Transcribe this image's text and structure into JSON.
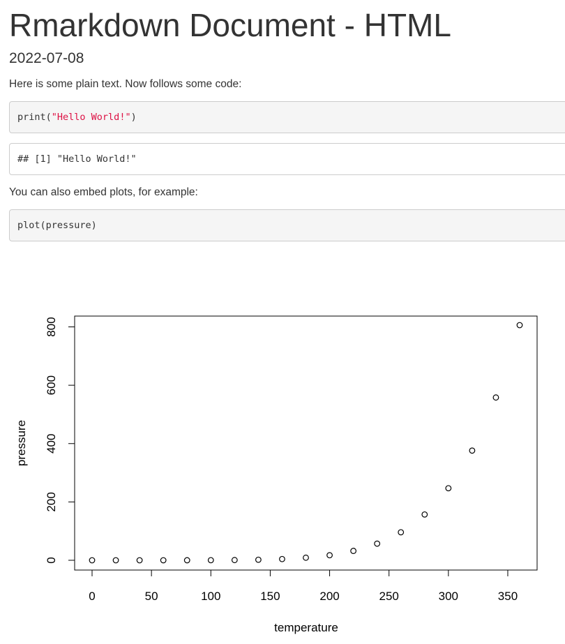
{
  "document": {
    "title": "Rmarkdown Document - HTML",
    "date": "2022-07-08",
    "intro_text": "Here is some plain text. Now follows some code:",
    "code1": {
      "fn": "print(",
      "string": "\"Hello World!\"",
      "close": ")"
    },
    "output1": "## [1] \"Hello World!\"",
    "plots_text": "You can also embed plots, for example:",
    "code2": "plot(pressure)"
  },
  "chart_data": {
    "type": "scatter",
    "title": "",
    "xlabel": "temperature",
    "ylabel": "pressure",
    "xlim": [
      0,
      360
    ],
    "ylim": [
      0,
      806
    ],
    "x_ticks": [
      0,
      50,
      100,
      150,
      200,
      250,
      300,
      350
    ],
    "y_ticks": [
      0,
      200,
      400,
      600,
      800
    ],
    "grid": false,
    "marker": "open-circle",
    "x": [
      0,
      20,
      40,
      60,
      80,
      100,
      120,
      140,
      160,
      180,
      200,
      220,
      240,
      260,
      280,
      300,
      320,
      340,
      360
    ],
    "y": [
      0.0002,
      0.0012,
      0.006,
      0.03,
      0.09,
      0.27,
      0.75,
      1.85,
      4.2,
      8.8,
      17.3,
      32.1,
      57,
      96,
      157,
      247,
      376,
      558,
      806
    ]
  }
}
